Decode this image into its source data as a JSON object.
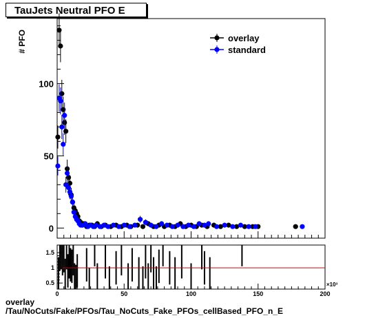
{
  "title": "TauJets Neutral PFO E",
  "footer": {
    "line1": "overlay",
    "line2": "/Tau/NoCuts/Fake/PFOs/Tau_NoCuts_Fake_PFOs_cellBased_PFO_n_E"
  },
  "colors": {
    "overlay": "#000000",
    "standard": "#0000ff",
    "ratio_line": "#cc0000"
  },
  "chart_data": [
    {
      "type": "scatter",
      "ylabel": "# PFO",
      "xlim": [
        0,
        200
      ],
      "ylim": [
        -7,
        145
      ],
      "x_multiplier_label": "×10³",
      "x_ticks": [
        "0",
        "50",
        "100",
        "150",
        "200"
      ],
      "y_ticks": [
        "0",
        "50",
        "100"
      ],
      "legend": {
        "position": "top-right",
        "entries": [
          "overlay",
          "standard"
        ]
      },
      "series": [
        {
          "name": "overlay",
          "points": [
            [
              0.5,
              63
            ],
            [
              1.5,
              137
            ],
            [
              2.5,
              126
            ],
            [
              3.5,
              93
            ],
            [
              4.5,
              82
            ],
            [
              5.5,
              73
            ],
            [
              6.5,
              67
            ],
            [
              7.5,
              41
            ],
            [
              8.5,
              35
            ],
            [
              9.5,
              31
            ],
            [
              10.5,
              23
            ],
            [
              11.5,
              18
            ],
            [
              12.5,
              14
            ],
            [
              13.5,
              12
            ],
            [
              14.5,
              10
            ],
            [
              15.5,
              8
            ],
            [
              16.5,
              5
            ],
            [
              17.5,
              4
            ],
            [
              18.5,
              2
            ],
            [
              20,
              3
            ],
            [
              22,
              1
            ],
            [
              24,
              2
            ],
            [
              26,
              2
            ],
            [
              28,
              1
            ],
            [
              30,
              3
            ],
            [
              33,
              1
            ],
            [
              36,
              2
            ],
            [
              40,
              1
            ],
            [
              44,
              2
            ],
            [
              48,
              1
            ],
            [
              52,
              2
            ],
            [
              55,
              1
            ],
            [
              60,
              2
            ],
            [
              64,
              1
            ],
            [
              68,
              3
            ],
            [
              72,
              1
            ],
            [
              76,
              2
            ],
            [
              80,
              1
            ],
            [
              84,
              2
            ],
            [
              88,
              1
            ],
            [
              92,
              3
            ],
            [
              96,
              1
            ],
            [
              100,
              2
            ],
            [
              104,
              1
            ],
            [
              108,
              2
            ],
            [
              112,
              1
            ],
            [
              117,
              2
            ],
            [
              122,
              1
            ],
            [
              128,
              2
            ],
            [
              134,
              1
            ],
            [
              140,
              1
            ],
            [
              146,
              1
            ],
            [
              150,
              1
            ],
            [
              178,
              1
            ]
          ]
        },
        {
          "name": "standard",
          "points": [
            [
              0.5,
              43
            ],
            [
              1.5,
              90
            ],
            [
              2.5,
              88
            ],
            [
              3.5,
              70
            ],
            [
              4.5,
              58
            ],
            [
              5.5,
              78
            ],
            [
              6.5,
              30
            ],
            [
              7.5,
              38
            ],
            [
              8.5,
              28
            ],
            [
              9.5,
              25
            ],
            [
              10.5,
              22
            ],
            [
              11.5,
              18
            ],
            [
              12.5,
              11
            ],
            [
              13.5,
              8
            ],
            [
              14.5,
              6
            ],
            [
              15.5,
              5
            ],
            [
              16.5,
              3
            ],
            [
              17.5,
              2
            ],
            [
              19,
              2
            ],
            [
              21,
              3
            ],
            [
              23,
              1
            ],
            [
              25,
              2
            ],
            [
              27,
              1
            ],
            [
              29,
              2
            ],
            [
              32,
              1
            ],
            [
              35,
              2
            ],
            [
              38,
              1
            ],
            [
              42,
              2
            ],
            [
              46,
              1
            ],
            [
              50,
              2
            ],
            [
              54,
              1
            ],
            [
              58,
              2
            ],
            [
              62,
              6
            ],
            [
              66,
              4
            ],
            [
              70,
              2
            ],
            [
              74,
              1
            ],
            [
              78,
              3
            ],
            [
              82,
              2
            ],
            [
              86,
              1
            ],
            [
              90,
              2
            ],
            [
              94,
              1
            ],
            [
              98,
              2
            ],
            [
              102,
              1
            ],
            [
              106,
              3
            ],
            [
              110,
              2
            ],
            [
              113,
              3
            ],
            [
              119,
              1
            ],
            [
              125,
              2
            ],
            [
              131,
              1
            ],
            [
              137,
              2
            ],
            [
              143,
              1
            ],
            [
              148,
              1
            ],
            [
              183,
              1
            ]
          ]
        }
      ]
    },
    {
      "type": "bar",
      "ylabel": "",
      "xlim": [
        0,
        200
      ],
      "ylim": [
        0.3,
        1.75
      ],
      "y_ticks": [
        "0.5",
        "1",
        "1.5"
      ],
      "x_ticks": [
        "0",
        "50",
        "100",
        "150",
        "200"
      ],
      "reference_line": 1.0,
      "bars": [
        [
          1,
          0.8
        ],
        [
          2,
          1.45
        ],
        [
          3,
          1.5
        ],
        [
          4,
          1.3
        ],
        [
          5,
          1.4
        ],
        [
          6,
          0.75
        ],
        [
          7,
          1.5
        ],
        [
          8,
          0.9
        ],
        [
          9,
          1.2
        ],
        [
          10,
          1.1
        ],
        [
          11,
          1.05
        ],
        [
          12,
          1.3
        ],
        [
          13,
          0.6
        ],
        [
          14,
          0.55
        ],
        [
          15,
          0.9
        ],
        [
          22,
          1.1
        ],
        [
          24,
          0.45
        ],
        [
          28,
          1.6
        ],
        [
          30,
          0.6
        ],
        [
          36,
          1.2
        ],
        [
          39,
          0.5
        ],
        [
          44,
          1.0
        ],
        [
          48,
          1.3
        ],
        [
          53,
          0.6
        ],
        [
          56,
          1.1
        ],
        [
          61,
          0.8
        ],
        [
          64,
          0.5
        ],
        [
          66,
          1.2
        ],
        [
          68,
          0.6
        ],
        [
          70,
          1.4
        ],
        [
          72,
          0.8
        ],
        [
          74,
          0.5
        ],
        [
          76,
          1.05
        ],
        [
          79,
          1.6
        ],
        [
          84,
          1.0
        ],
        [
          88,
          0.8
        ],
        [
          93,
          1.2
        ],
        [
          100,
          0.6
        ],
        [
          108,
          1.5
        ],
        [
          110,
          1.0
        ],
        [
          114,
          0.8
        ],
        [
          138,
          1.6
        ]
      ]
    }
  ]
}
